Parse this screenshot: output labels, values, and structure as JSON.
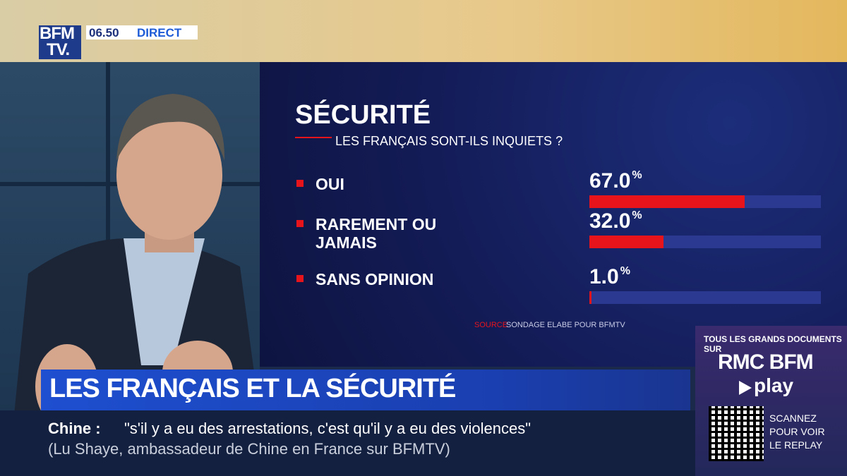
{
  "broadcast": {
    "logo": [
      "BFM",
      "TV."
    ],
    "time": "06.50",
    "live": "DIRECT",
    "headline": "LES FRANÇAIS ET LA SÉCURITÉ",
    "ticker": {
      "topic": "Chine :",
      "quote": "\"s'il y a eu des arrestations, c'est qu'il y a eu des violences\"",
      "attribution": "(Lu Shaye, ambassadeur de Chine en France sur BFMTV)"
    },
    "promo": {
      "intro": "TOUS LES GRANDS DOCUMENTS SUR",
      "brand": "RMC BFM",
      "play": "play",
      "cta": [
        "SCANNEZ",
        "POUR VOIR",
        "LE REPLAY"
      ]
    }
  },
  "chart_data": {
    "type": "bar",
    "orientation": "horizontal",
    "title": "SÉCURITÉ",
    "subtitle": "LES FRANÇAIS SONT-ILS INQUIETS ?",
    "categories": [
      "OUI",
      "RAREMENT OU JAMAIS",
      "SANS OPINION"
    ],
    "values": [
      67.0,
      32.0,
      1.0
    ],
    "value_labels": [
      "67.0",
      "32.0",
      "1.0"
    ],
    "unit": "%",
    "xlim": [
      0,
      100
    ],
    "color": "#e8141c",
    "track_color": "#2b3990",
    "source_label": "SOURCE",
    "source": "SONDAGE ELABE POUR BFMTV"
  }
}
